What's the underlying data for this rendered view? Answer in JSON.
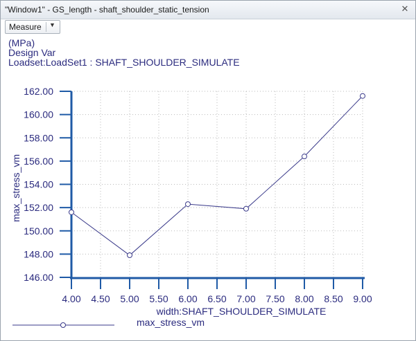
{
  "window": {
    "title": "\"Window1\" - GS_length - shaft_shoulder_static_tension",
    "close_icon": "close-icon"
  },
  "toolbar": {
    "measure_label": "Measure",
    "dropdown_icon": "chevron-down-icon"
  },
  "header": {
    "line1": "(MPa)",
    "line2": "Design Var",
    "line3": "Loadset:LoadSet1 :  SHAFT_SHOULDER_SIMULATE"
  },
  "chart_data": {
    "type": "line",
    "xlabel": "width:SHAFT_SHOULDER_SIMULATE",
    "ylabel": "max_stress_vm",
    "xlim": [
      4.0,
      9.0
    ],
    "ylim": [
      146.0,
      162.0
    ],
    "x_ticks": [
      "4.00",
      "4.50",
      "5.00",
      "5.50",
      "6.00",
      "6.50",
      "7.00",
      "7.50",
      "8.00",
      "8.50",
      "9.00"
    ],
    "y_ticks": [
      "146.00",
      "148.00",
      "150.00",
      "152.00",
      "154.00",
      "156.00",
      "158.00",
      "160.00",
      "162.00"
    ],
    "grid": true,
    "legend_position": "bottom-left",
    "series": [
      {
        "name": "max_stress_vm",
        "color": "#3a3a8a",
        "x": [
          4.0,
          5.0,
          6.0,
          7.0,
          8.0,
          9.0
        ],
        "y": [
          151.6,
          147.9,
          152.3,
          151.9,
          156.4,
          161.6
        ]
      }
    ]
  }
}
